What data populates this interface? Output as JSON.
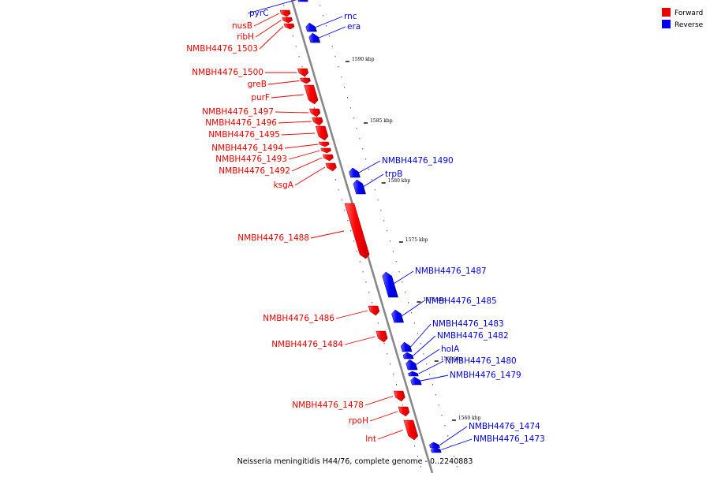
{
  "colors": {
    "forward": "#ee0000",
    "reverse": "#0000ee",
    "backbone": "#888888"
  },
  "legend": [
    {
      "label": "Forward",
      "strand": "forward"
    },
    {
      "label": "Reverse",
      "strand": "reverse"
    }
  ],
  "caption": "Neisseria meningitidis H44/76, complete genome - 0..2240883",
  "ticks": [
    "1590 kbp",
    "1585 kbp",
    "1580 kbp",
    "1575 kbp",
    "1570 kbp",
    "1565 kbp",
    "1560 kbp"
  ],
  "genes": [
    {
      "name": "pyrC",
      "strand": "reverse"
    },
    {
      "name": "rnc",
      "strand": "reverse"
    },
    {
      "name": "era",
      "strand": "reverse"
    },
    {
      "name": "nusB",
      "strand": "forward"
    },
    {
      "name": "ribH",
      "strand": "forward"
    },
    {
      "name": "NMBH4476_1503",
      "strand": "forward"
    },
    {
      "name": "NMBH4476_1500",
      "strand": "forward"
    },
    {
      "name": "greB",
      "strand": "forward"
    },
    {
      "name": "purF",
      "strand": "forward"
    },
    {
      "name": "NMBH4476_1497",
      "strand": "forward"
    },
    {
      "name": "NMBH4476_1496",
      "strand": "forward"
    },
    {
      "name": "NMBH4476_1495",
      "strand": "forward"
    },
    {
      "name": "NMBH4476_1494",
      "strand": "forward"
    },
    {
      "name": "NMBH4476_1493",
      "strand": "forward"
    },
    {
      "name": "NMBH4476_1492",
      "strand": "forward"
    },
    {
      "name": "ksgA",
      "strand": "forward"
    },
    {
      "name": "NMBH4476_1490",
      "strand": "reverse"
    },
    {
      "name": "trpB",
      "strand": "reverse"
    },
    {
      "name": "NMBH4476_1488",
      "strand": "forward"
    },
    {
      "name": "NMBH4476_1487",
      "strand": "reverse"
    },
    {
      "name": "NMBH4476_1486",
      "strand": "forward"
    },
    {
      "name": "NMBH4476_1485",
      "strand": "reverse"
    },
    {
      "name": "NMBH4476_1484",
      "strand": "forward"
    },
    {
      "name": "NMBH4476_1483",
      "strand": "reverse"
    },
    {
      "name": "NMBH4476_1482",
      "strand": "reverse"
    },
    {
      "name": "holA",
      "strand": "reverse"
    },
    {
      "name": "NMBH4476_1480",
      "strand": "reverse"
    },
    {
      "name": "NMBH4476_1479",
      "strand": "reverse"
    },
    {
      "name": "NMBH4476_1478",
      "strand": "forward"
    },
    {
      "name": "rpoH",
      "strand": "forward"
    },
    {
      "name": "lnt",
      "strand": "forward"
    },
    {
      "name": "NMBH4476_1474",
      "strand": "reverse"
    },
    {
      "name": "NMBH4476_1473",
      "strand": "reverse"
    }
  ]
}
